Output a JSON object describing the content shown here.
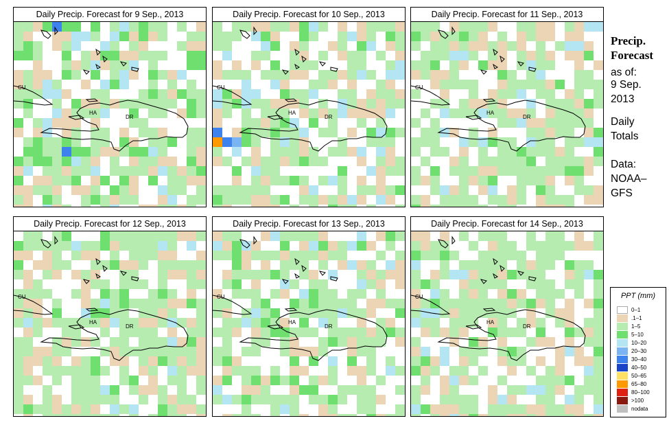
{
  "panels": [
    {
      "title": "Daily Precip. Forecast for  9 Sep., 2013",
      "seed": 11,
      "wet": 0.9,
      "id": "sep9"
    },
    {
      "title": "Daily Precip. Forecast for  10 Sep., 2013",
      "seed": 23,
      "wet": 0.55,
      "id": "sep10"
    },
    {
      "title": "Daily Precip. Forecast for  11 Sep., 2013",
      "seed": 37,
      "wet": 0.35,
      "id": "sep11"
    },
    {
      "title": "Daily Precip. Forecast for  12 Sep., 2013",
      "seed": 41,
      "wet": 0.4,
      "id": "sep12"
    },
    {
      "title": "Daily Precip. Forecast for  13 Sep., 2013",
      "seed": 53,
      "wet": 0.5,
      "id": "sep13"
    },
    {
      "title": "Daily Precip. Forecast for  14 Sep., 2013",
      "seed": 67,
      "wet": 0.45,
      "id": "sep14"
    }
  ],
  "map_labels": {
    "cuba": "CU",
    "haiti": "HA",
    "dominican_republic": "DR"
  },
  "sidebar": {
    "title_line1": "Precip.",
    "title_line2": "Forecast",
    "asof_line1": "as of:",
    "asof_line2": "9 Sep.",
    "asof_line3": "2013",
    "totals_line1": "Daily",
    "totals_line2": "Totals",
    "data_line1": "Data:",
    "data_line2": "NOAA–",
    "data_line3": "GFS"
  },
  "legend": {
    "title": "PPT (mm)",
    "items": [
      {
        "label": "0–1",
        "color": "#ffffff"
      },
      {
        "label": ".1–1",
        "color": "#ecd5b5"
      },
      {
        "label": "1–5",
        "color": "#b6ecb0"
      },
      {
        "label": "5–10",
        "color": "#6fe06f"
      },
      {
        "label": "10–20",
        "color": "#b3e6f2"
      },
      {
        "label": "20–30",
        "color": "#7ab4f2"
      },
      {
        "label": "30–40",
        "color": "#3e82ee"
      },
      {
        "label": "40–50",
        "color": "#1a44c8"
      },
      {
        "label": "50–65",
        "color": "#ffe066"
      },
      {
        "label": "65–80",
        "color": "#ff9900"
      },
      {
        "label": "80–100",
        "color": "#e02010"
      },
      {
        "label": ">100",
        "color": "#8a1a10"
      },
      {
        "label": "nodata",
        "color": "#c0c0c0"
      }
    ]
  }
}
